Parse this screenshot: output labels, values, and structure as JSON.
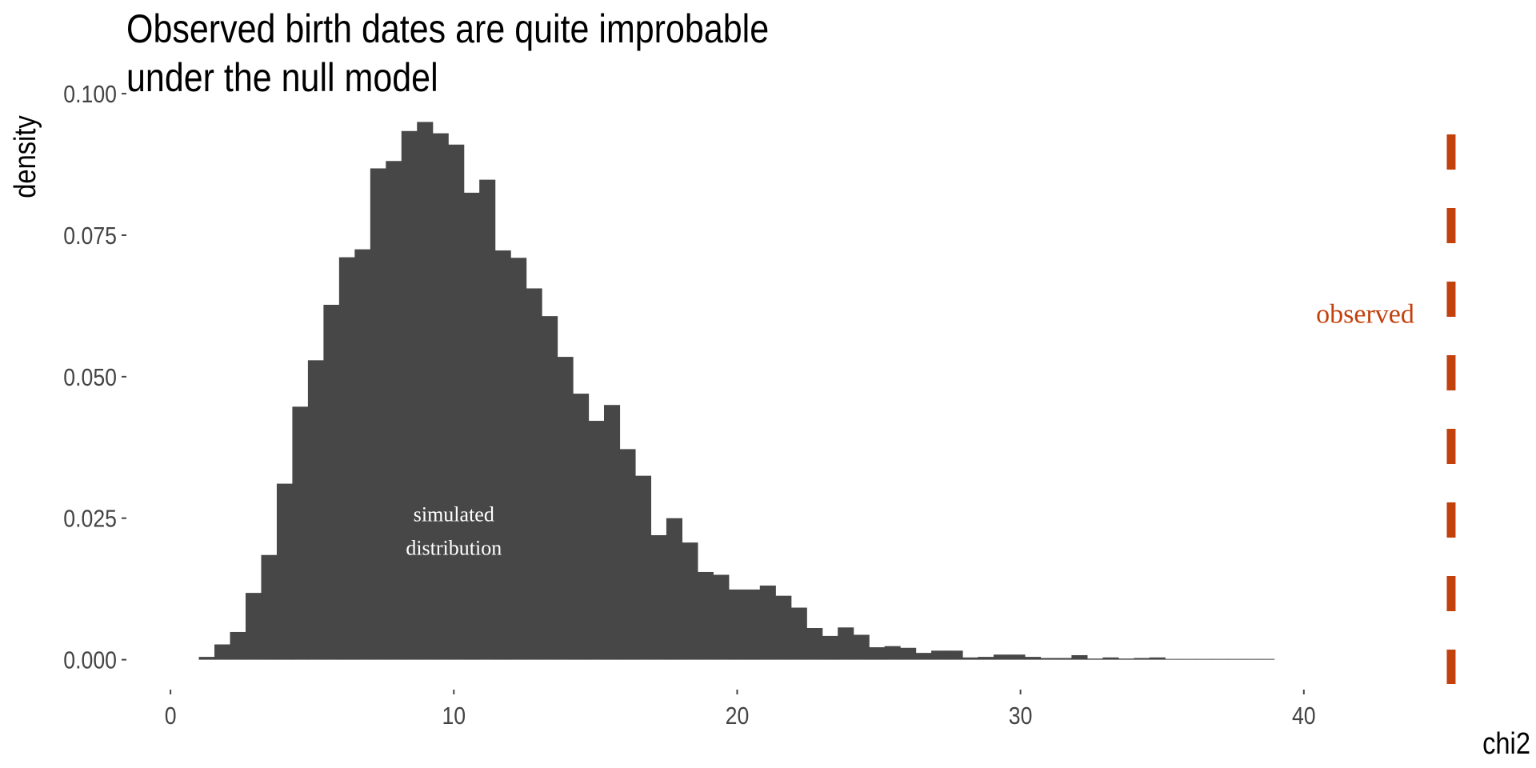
{
  "title_lines": [
    "Observed birth dates are quite improbable",
    "under the null model"
  ],
  "chart_data": {
    "type": "bar",
    "title": "Observed birth dates are quite improbable under the null model",
    "xlabel": "chi2",
    "ylabel": "density",
    "xlim": [
      -1.5,
      46.5
    ],
    "ylim": [
      -0.005,
      0.101
    ],
    "x_ticks": [
      0,
      10,
      20,
      30,
      40
    ],
    "x_tick_labels": [
      "0",
      "10",
      "20",
      "30",
      "40"
    ],
    "y_ticks": [
      0,
      0.025,
      0.05,
      0.075,
      0.1
    ],
    "y_tick_labels": [
      "0.000",
      "0.025",
      "0.050",
      "0.075",
      "0.100"
    ],
    "grid": false,
    "bin_width": 0.55,
    "bin_start": 1.0,
    "values": [
      0.0005,
      0.0027,
      0.0049,
      0.0118,
      0.0185,
      0.0311,
      0.0447,
      0.0529,
      0.0627,
      0.0711,
      0.0725,
      0.0868,
      0.0881,
      0.0934,
      0.095,
      0.093,
      0.091,
      0.0825,
      0.0848,
      0.0723,
      0.071,
      0.0656,
      0.0607,
      0.0535,
      0.047,
      0.0422,
      0.045,
      0.0372,
      0.0325,
      0.022,
      0.025,
      0.0207,
      0.0155,
      0.015,
      0.0124,
      0.0124,
      0.0131,
      0.0113,
      0.0092,
      0.0056,
      0.0042,
      0.0057,
      0.0044,
      0.0022,
      0.0024,
      0.0021,
      0.0012,
      0.0016,
      0.0016,
      0.0004,
      0.0005,
      0.0009,
      0.0009,
      0.0005,
      0.0003,
      0.0003,
      0.0008,
      0.0002,
      0.0004,
      0.0002,
      0.0003,
      0.0004,
      0.0,
      0.0,
      0.0001,
      0.0001,
      0.0001,
      0.0001,
      0.0001
    ],
    "observed_x": 45.2,
    "annotations": {
      "simulated": {
        "lines": [
          "simulated",
          "distribution"
        ],
        "x": 10.0,
        "y": 0.0245,
        "color": "#ffffff"
      },
      "observed": {
        "text": "observed",
        "x": 43.9,
        "y": 0.0595,
        "color": "#c2410c"
      }
    },
    "colors": {
      "bars": "#474747",
      "observed_line": "#c2410c",
      "ticks": "#444444"
    }
  }
}
